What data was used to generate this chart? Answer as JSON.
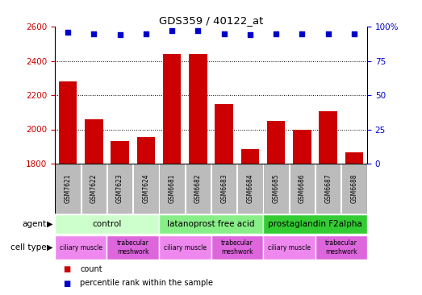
{
  "title": "GDS359 / 40122_at",
  "samples": [
    "GSM7621",
    "GSM7622",
    "GSM7623",
    "GSM7624",
    "GSM6681",
    "GSM6682",
    "GSM6683",
    "GSM6684",
    "GSM6685",
    "GSM6686",
    "GSM6687",
    "GSM6688"
  ],
  "counts": [
    2280,
    2060,
    1930,
    1955,
    2440,
    2440,
    2150,
    1885,
    2050,
    2000,
    2105,
    1865
  ],
  "percentiles": [
    96,
    95,
    94,
    95,
    97,
    97,
    95,
    94,
    95,
    95,
    95,
    95
  ],
  "ylim_left": [
    1800,
    2600
  ],
  "ylim_right": [
    0,
    100
  ],
  "yticks_left": [
    1800,
    2000,
    2200,
    2400,
    2600
  ],
  "yticks_right": [
    0,
    25,
    50,
    75,
    100
  ],
  "bar_color": "#cc0000",
  "dot_color": "#0000cc",
  "agents": [
    {
      "label": "control",
      "start": 0,
      "end": 4,
      "color": "#ccffcc"
    },
    {
      "label": "latanoprost free acid",
      "start": 4,
      "end": 8,
      "color": "#88ee88"
    },
    {
      "label": "prostaglandin F2alpha",
      "start": 8,
      "end": 12,
      "color": "#33cc33"
    }
  ],
  "cell_types": [
    {
      "label": "ciliary muscle",
      "start": 0,
      "end": 2,
      "color": "#ee88ee"
    },
    {
      "label": "trabecular\nmeshwork",
      "start": 2,
      "end": 4,
      "color": "#dd66dd"
    },
    {
      "label": "ciliary muscle",
      "start": 4,
      "end": 6,
      "color": "#ee88ee"
    },
    {
      "label": "trabecular\nmeshwork",
      "start": 6,
      "end": 8,
      "color": "#dd66dd"
    },
    {
      "label": "ciliary muscle",
      "start": 8,
      "end": 10,
      "color": "#ee88ee"
    },
    {
      "label": "trabecular\nmeshwork",
      "start": 10,
      "end": 12,
      "color": "#dd66dd"
    }
  ],
  "ylabel_left_color": "#cc0000",
  "ylabel_right_color": "#0000cc",
  "sample_box_color": "#bbbbbb",
  "legend_count_color": "#cc0000",
  "legend_pct_color": "#0000cc",
  "grid_yticks": [
    2000,
    2200,
    2400
  ]
}
